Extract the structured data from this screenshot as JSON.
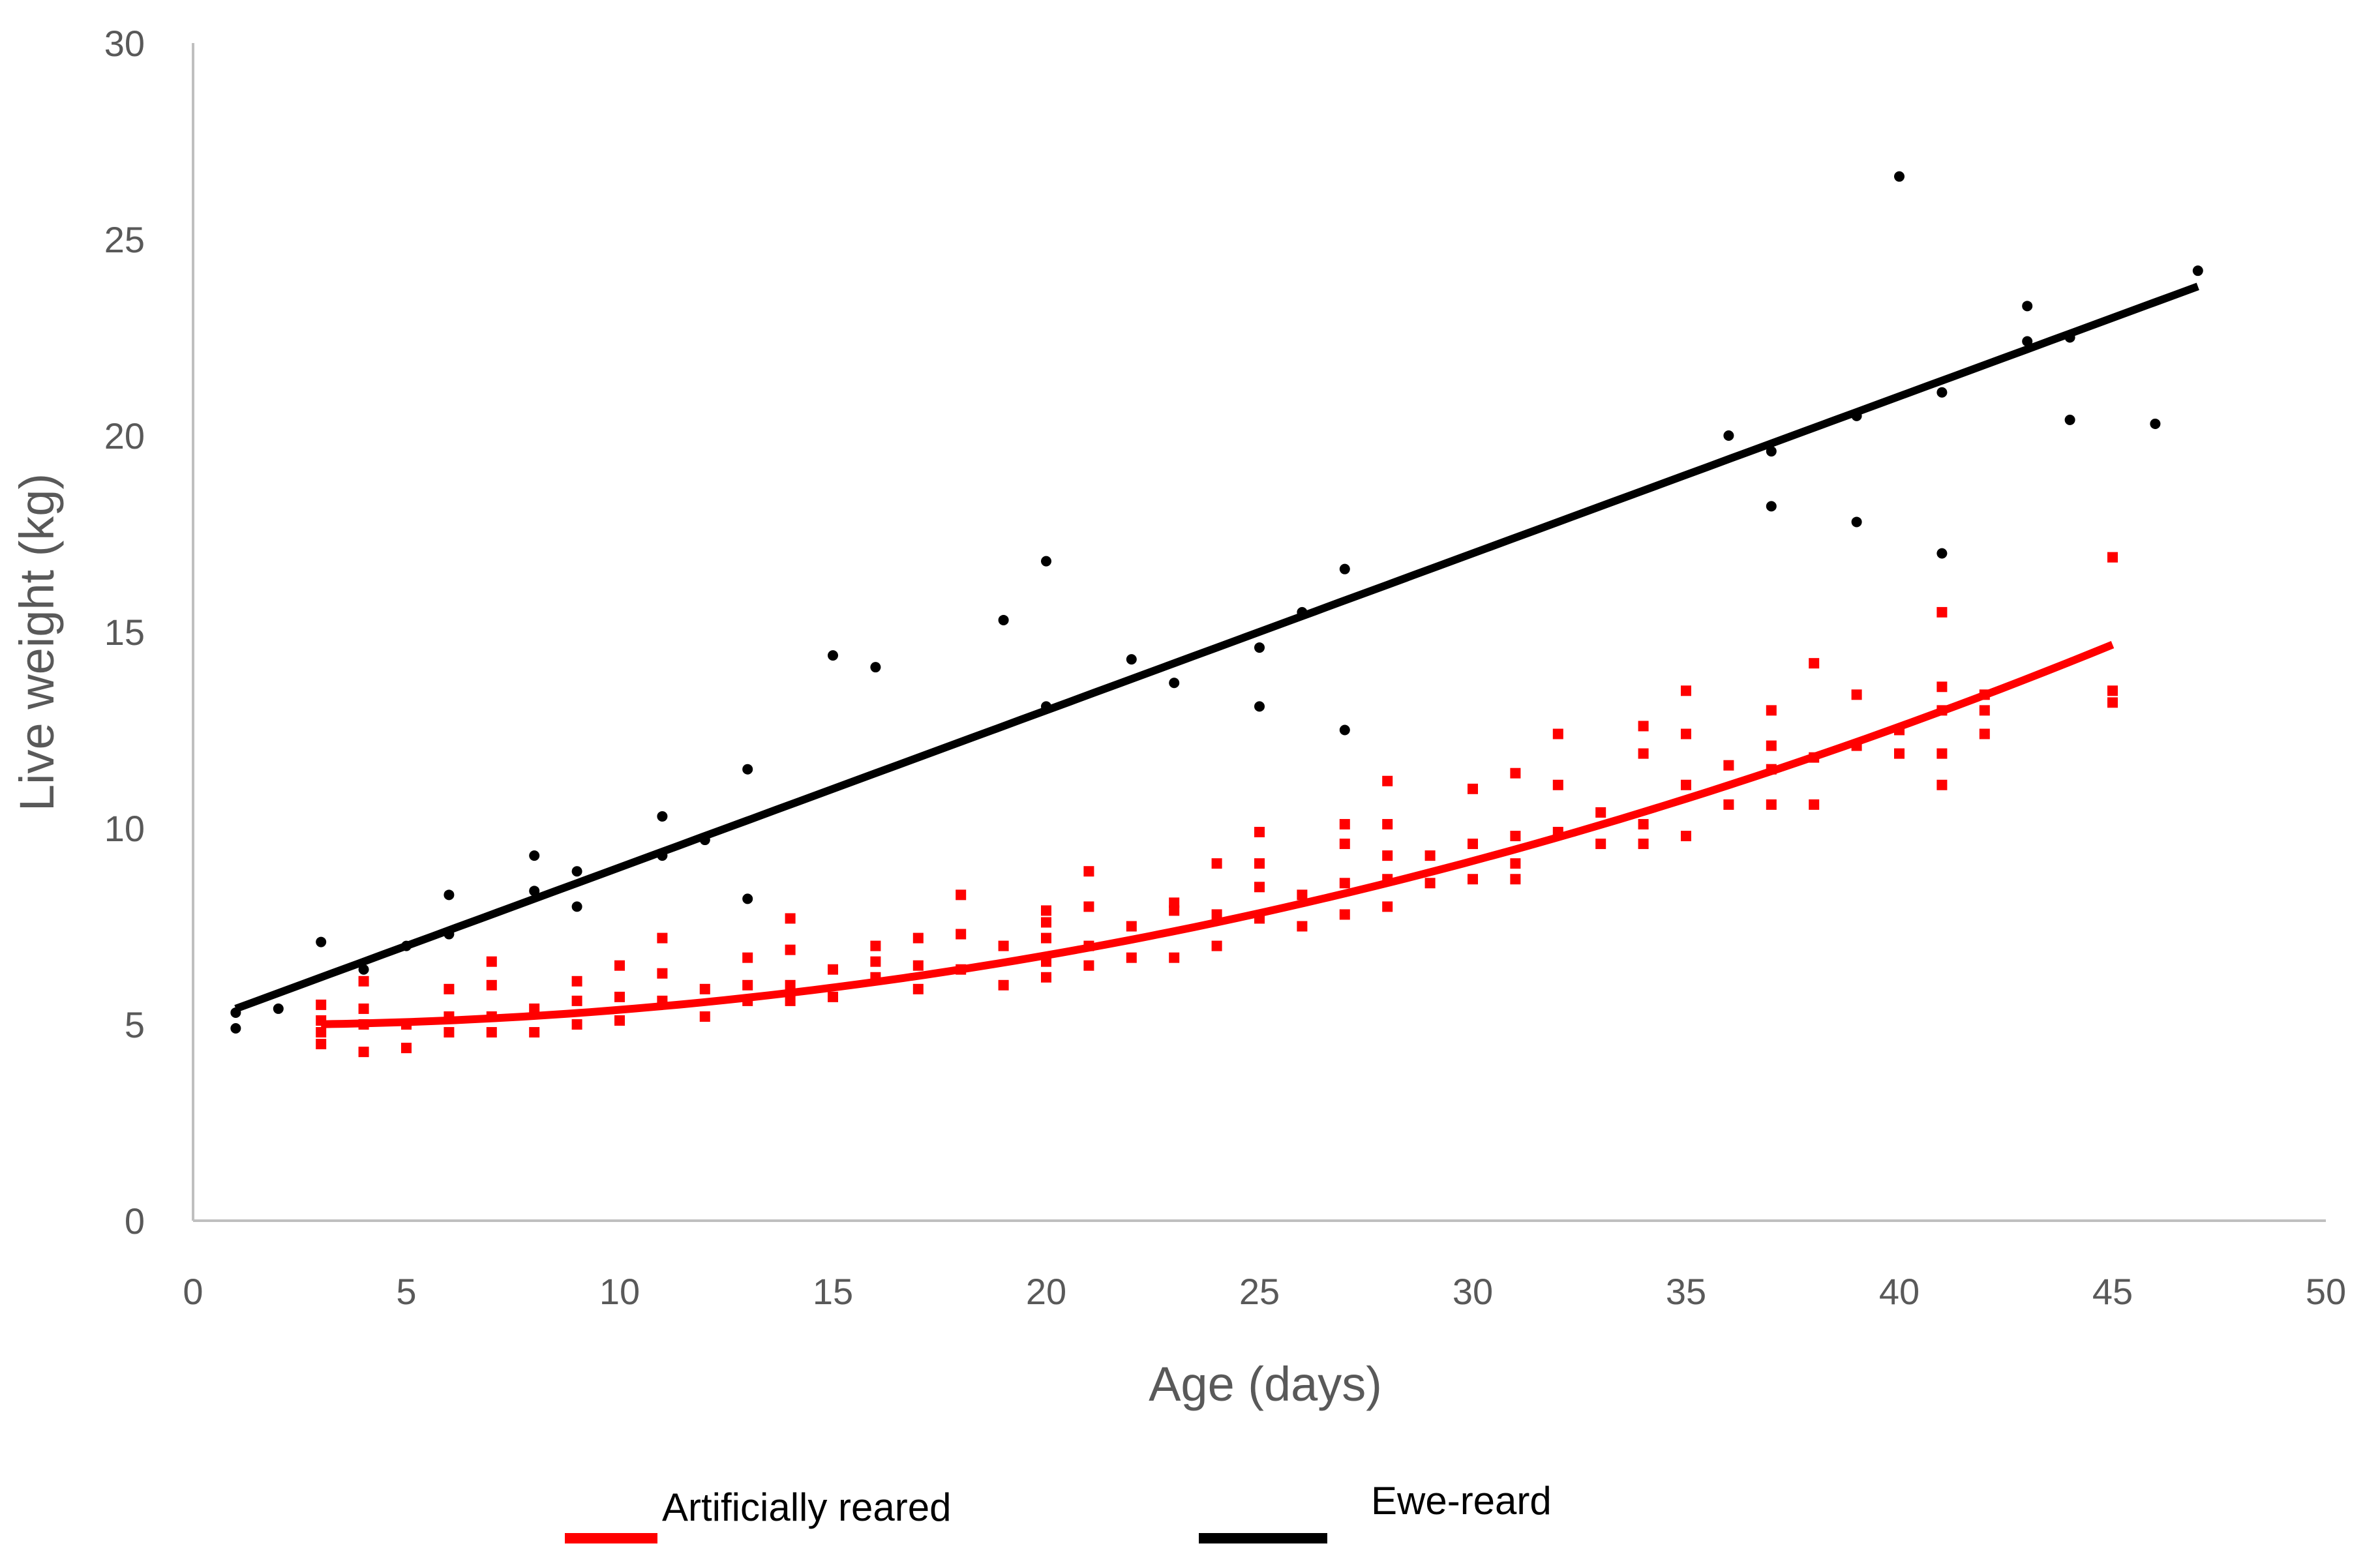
{
  "chart_data": {
    "type": "scatter",
    "xlabel": "Age (days)",
    "ylabel": "Live weight (kg)",
    "xlim": [
      0,
      50
    ],
    "ylim": [
      0,
      30
    ],
    "x_ticks": [
      "0",
      "5",
      "10",
      "15",
      "20",
      "25",
      "30",
      "35",
      "40",
      "45",
      "50"
    ],
    "y_ticks": [
      "0",
      "5",
      "10",
      "15",
      "20",
      "25",
      "30"
    ],
    "grid": false,
    "legend_position": "bottom",
    "series": [
      {
        "name": "Artificially reared",
        "color": "#ff0000",
        "marker": "square",
        "points": [
          [
            3,
            4.5
          ],
          [
            3,
            4.8
          ],
          [
            3,
            5.1
          ],
          [
            3,
            5.5
          ],
          [
            4,
            4.3
          ],
          [
            4,
            5.0
          ],
          [
            4,
            5.4
          ],
          [
            4,
            6.1
          ],
          [
            5,
            4.4
          ],
          [
            5,
            5.0
          ],
          [
            6,
            4.8
          ],
          [
            6,
            5.2
          ],
          [
            6,
            5.9
          ],
          [
            7,
            4.8
          ],
          [
            7,
            5.2
          ],
          [
            7,
            6.0
          ],
          [
            7,
            6.6
          ],
          [
            8,
            4.8
          ],
          [
            8,
            5.4
          ],
          [
            9,
            5.0
          ],
          [
            9,
            5.6
          ],
          [
            9,
            6.1
          ],
          [
            10,
            5.1
          ],
          [
            10,
            5.7
          ],
          [
            10,
            6.5
          ],
          [
            11,
            5.6
          ],
          [
            11,
            6.3
          ],
          [
            11,
            7.2
          ],
          [
            12,
            5.2
          ],
          [
            12,
            5.9
          ],
          [
            13,
            5.6
          ],
          [
            13,
            6.0
          ],
          [
            13,
            6.7
          ],
          [
            14,
            5.6
          ],
          [
            14,
            6.0
          ],
          [
            14,
            6.9
          ],
          [
            14,
            7.7
          ],
          [
            15,
            5.7
          ],
          [
            15,
            6.4
          ],
          [
            16,
            6.2
          ],
          [
            16,
            6.6
          ],
          [
            16,
            7.0
          ],
          [
            17,
            5.9
          ],
          [
            17,
            6.5
          ],
          [
            17,
            7.2
          ],
          [
            18,
            6.4
          ],
          [
            18,
            7.3
          ],
          [
            18,
            8.3
          ],
          [
            19,
            6.0
          ],
          [
            19,
            7.0
          ],
          [
            20,
            6.2
          ],
          [
            20,
            6.6
          ],
          [
            20,
            7.2
          ],
          [
            20,
            7.6
          ],
          [
            20,
            7.9
          ],
          [
            21,
            6.5
          ],
          [
            21,
            7.0
          ],
          [
            21,
            8.0
          ],
          [
            21,
            8.9
          ],
          [
            22,
            6.7
          ],
          [
            22,
            7.5
          ],
          [
            23,
            6.7
          ],
          [
            23,
            7.9
          ],
          [
            23,
            8.1
          ],
          [
            24,
            7.0
          ],
          [
            24,
            7.8
          ],
          [
            24,
            9.1
          ],
          [
            25,
            7.7
          ],
          [
            25,
            8.5
          ],
          [
            25,
            9.1
          ],
          [
            25,
            9.9
          ],
          [
            26,
            7.5
          ],
          [
            26,
            8.3
          ],
          [
            27,
            7.8
          ],
          [
            27,
            8.6
          ],
          [
            27,
            9.6
          ],
          [
            27,
            10.1
          ],
          [
            28,
            8.0
          ],
          [
            28,
            8.7
          ],
          [
            28,
            9.3
          ],
          [
            28,
            10.1
          ],
          [
            28,
            11.2
          ],
          [
            29,
            8.6
          ],
          [
            29,
            9.3
          ],
          [
            30,
            8.7
          ],
          [
            30,
            9.6
          ],
          [
            30,
            11.0
          ],
          [
            31,
            8.7
          ],
          [
            31,
            9.1
          ],
          [
            31,
            9.8
          ],
          [
            31,
            11.4
          ],
          [
            32,
            9.9
          ],
          [
            32,
            11.1
          ],
          [
            32,
            12.4
          ],
          [
            33,
            9.6
          ],
          [
            33,
            10.4
          ],
          [
            34,
            9.6
          ],
          [
            34,
            10.1
          ],
          [
            34,
            11.9
          ],
          [
            34,
            12.6
          ],
          [
            35,
            9.8
          ],
          [
            35,
            11.1
          ],
          [
            35,
            12.4
          ],
          [
            35,
            13.5
          ],
          [
            36,
            10.6
          ],
          [
            36,
            11.6
          ],
          [
            37,
            10.6
          ],
          [
            37,
            11.5
          ],
          [
            37,
            12.1
          ],
          [
            37,
            13.0
          ],
          [
            38,
            10.6
          ],
          [
            38,
            11.8
          ],
          [
            38,
            14.2
          ],
          [
            39,
            12.1
          ],
          [
            39,
            13.4
          ],
          [
            40,
            11.9
          ],
          [
            40,
            12.5
          ],
          [
            41,
            11.1
          ],
          [
            41,
            11.9
          ],
          [
            41,
            13.0
          ],
          [
            41,
            13.6
          ],
          [
            41,
            15.5
          ],
          [
            42,
            12.4
          ],
          [
            42,
            13.0
          ],
          [
            42,
            13.4
          ],
          [
            45,
            13.2
          ],
          [
            45,
            13.5
          ],
          [
            45,
            16.9
          ]
        ],
        "trend": {
          "type": "polynomial",
          "x_range": [
            3,
            45
          ],
          "coefficients": [
            5.0,
            -0.0136,
            0.00508
          ]
        }
      },
      {
        "name": "Ewe-reard",
        "color": "#000000",
        "marker": "circle",
        "points": [
          [
            1,
            4.9
          ],
          [
            1,
            5.3
          ],
          [
            2,
            5.4
          ],
          [
            3,
            7.1
          ],
          [
            4,
            6.4
          ],
          [
            5,
            7.0
          ],
          [
            6,
            7.3
          ],
          [
            6,
            8.3
          ],
          [
            8,
            8.4
          ],
          [
            8,
            9.3
          ],
          [
            9,
            8.0
          ],
          [
            9,
            8.9
          ],
          [
            11,
            9.3
          ],
          [
            11,
            10.3
          ],
          [
            12,
            9.7
          ],
          [
            13,
            8.2
          ],
          [
            13,
            11.5
          ],
          [
            15,
            14.4
          ],
          [
            16,
            14.1
          ],
          [
            19,
            15.3
          ],
          [
            20,
            13.1
          ],
          [
            20,
            16.8
          ],
          [
            22,
            14.3
          ],
          [
            23,
            13.7
          ],
          [
            25,
            13.1
          ],
          [
            25,
            14.6
          ],
          [
            26,
            15.5
          ],
          [
            27,
            12.5
          ],
          [
            27,
            16.6
          ],
          [
            36,
            20.0
          ],
          [
            37,
            18.2
          ],
          [
            37,
            19.6
          ],
          [
            39,
            17.8
          ],
          [
            39,
            20.5
          ],
          [
            40,
            26.6
          ],
          [
            41,
            17.0
          ],
          [
            41,
            21.1
          ],
          [
            43,
            22.4
          ],
          [
            43,
            23.3
          ],
          [
            44,
            20.4
          ],
          [
            44,
            22.5
          ],
          [
            46,
            20.3
          ],
          [
            47,
            24.2
          ]
        ],
        "trend": {
          "type": "linear",
          "x_range": [
            1,
            47
          ],
          "coefficients": [
            5.0,
            0.4
          ]
        }
      }
    ]
  }
}
